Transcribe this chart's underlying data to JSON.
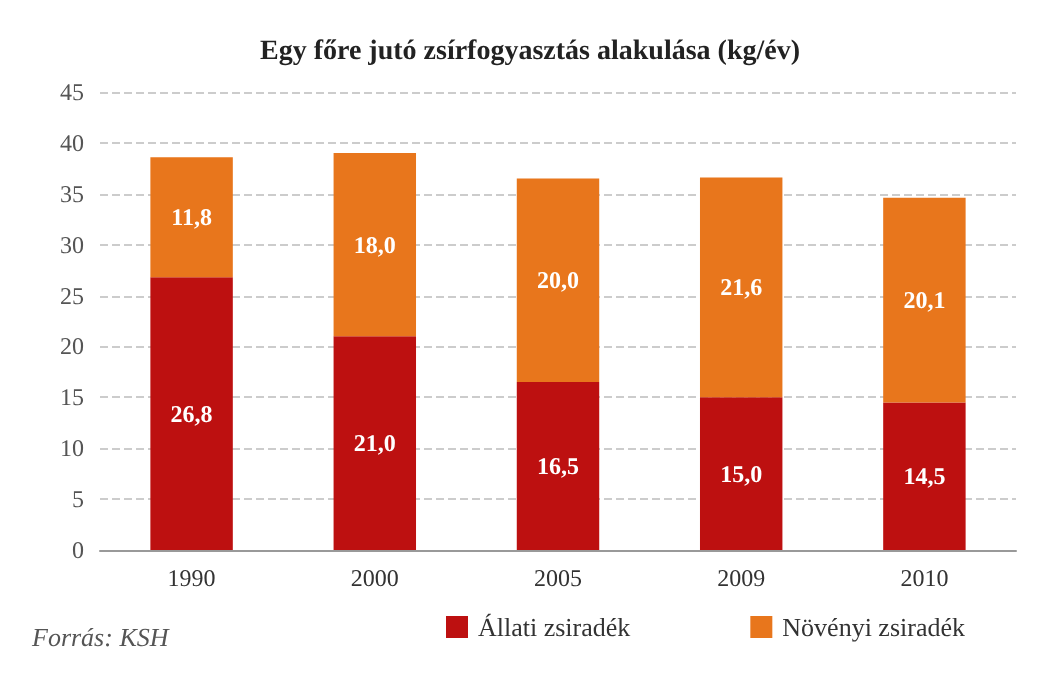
{
  "chart_data": {
    "type": "bar",
    "title": "Egy főre jutó zsírfogyasztás alakulása (kg/év)",
    "categories": [
      "1990",
      "2000",
      "2005",
      "2009",
      "2010"
    ],
    "series": [
      {
        "name": "Állati zsiradék",
        "color": "#bd1010",
        "values": [
          26.8,
          21.0,
          16.5,
          15.0,
          14.5
        ],
        "value_labels": [
          "26,8",
          "21,0",
          "16,5",
          "15,0",
          "14,5"
        ]
      },
      {
        "name": "Növényi zsiradék",
        "color": "#e8761c",
        "values": [
          11.8,
          18.0,
          20.0,
          21.6,
          20.1
        ],
        "value_labels": [
          "11,8",
          "18,0",
          "20,0",
          "21,6",
          "20,1"
        ]
      }
    ],
    "stacked": true,
    "ylim": [
      0,
      45
    ],
    "yticks": [
      0,
      5,
      10,
      15,
      20,
      25,
      30,
      35,
      40,
      45
    ],
    "grid": "y",
    "legend": "bottom",
    "annotations": [
      "Forrás: KSH"
    ]
  }
}
